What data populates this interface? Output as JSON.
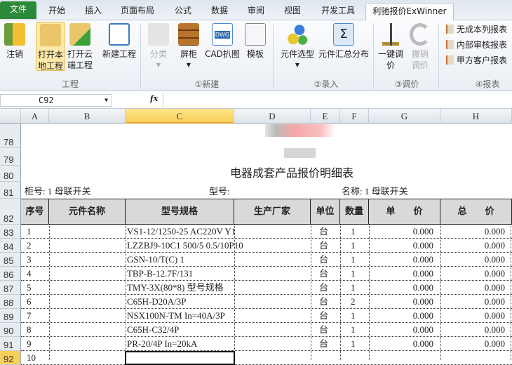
{
  "tabs": [
    "文件",
    "开始",
    "插入",
    "页面布局",
    "公式",
    "数据",
    "审阅",
    "视图",
    "开发工具",
    "利驰报价ExWinner"
  ],
  "ribbon": {
    "buttons": [
      {
        "label": "注销",
        "icon": "logout-door-icon"
      },
      {
        "label": "打开本地工程",
        "icon": "folder-icon"
      },
      {
        "label": "打开云端工程",
        "icon": "cloud-folder-icon"
      },
      {
        "label": "新建工程",
        "icon": "new-document-icon"
      },
      {
        "label": "分类",
        "icon": "folder-icon",
        "disabled": true
      },
      {
        "label": "屏柜",
        "icon": "cabinet-icon"
      },
      {
        "label": "CAD扒图",
        "icon": "dwg-icon"
      },
      {
        "label": "模板",
        "icon": "template-icon"
      },
      {
        "label": "元件选型",
        "icon": "gears-icon"
      },
      {
        "label": "元件汇总分布",
        "icon": "sigma-icon"
      },
      {
        "label": "一键调价",
        "icon": "scale-icon"
      },
      {
        "label": "撤销调价",
        "icon": "undo-icon",
        "disabled": true
      }
    ],
    "small_buttons": [
      "无成本列报表",
      "内部审核报表",
      "甲方客户报表"
    ],
    "groups": [
      "工程",
      "①新建",
      "②录入",
      "③调价",
      "④报表"
    ]
  },
  "formula_bar": {
    "name_box": "C92",
    "fx": "fx",
    "formula": ""
  },
  "columns": [
    "A",
    "B",
    "C",
    "D",
    "E",
    "F",
    "G",
    "H"
  ],
  "rows": [
    "78",
    "79",
    "80",
    "81",
    "82",
    "83",
    "84",
    "85",
    "86",
    "87",
    "88",
    "89",
    "90",
    "91",
    "92"
  ],
  "sheet": {
    "title": "电器成套产品报价明细表",
    "cabinet_label": "柜号: 1 母联开关",
    "model_label": "型号:",
    "name_label": "名称: 1 母联开关",
    "headers": [
      "序号",
      "元件名称",
      "型号规格",
      "生产厂家",
      "单位",
      "数量",
      "单　　价",
      "总　　价"
    ],
    "items": [
      {
        "no": "1",
        "spec": "VS1-12/1250-25 AC220V Y1",
        "unit": "台",
        "qty": "1",
        "price": "0.000",
        "total": "0.000"
      },
      {
        "no": "2",
        "spec": "LZZBJ9-10C1 500/5 0.5/10P10",
        "unit": "台",
        "qty": "1",
        "price": "0.000",
        "total": "0.000"
      },
      {
        "no": "3",
        "spec": "GSN-10/T(C) 1",
        "unit": "台",
        "qty": "1",
        "price": "0.000",
        "total": "0.000"
      },
      {
        "no": "4",
        "spec": "TBP-B-12.7F/131",
        "unit": "台",
        "qty": "1",
        "price": "0.000",
        "total": "0.000"
      },
      {
        "no": "5",
        "spec": "TMY-3X(80*8) 型号规格",
        "unit": "台",
        "qty": "1",
        "price": "0.000",
        "total": "0.000"
      },
      {
        "no": "6",
        "spec": "C65H-D20A/3P",
        "unit": "台",
        "qty": "2",
        "price": "0.000",
        "total": "0.000"
      },
      {
        "no": "7",
        "spec": "NSX100N-TM In=40A/3P",
        "unit": "台",
        "qty": "1",
        "price": "0.000",
        "total": "0.000"
      },
      {
        "no": "8",
        "spec": "C65H-C32/4P",
        "unit": "台",
        "qty": "1",
        "price": "0.000",
        "total": "0.000"
      },
      {
        "no": "9",
        "spec": "PR-20/4P In=20kA",
        "unit": "台",
        "qty": "1",
        "price": "0.000",
        "total": "0.000"
      },
      {
        "no": "10",
        "spec": "",
        "unit": "",
        "qty": "",
        "price": "",
        "total": ""
      }
    ]
  }
}
